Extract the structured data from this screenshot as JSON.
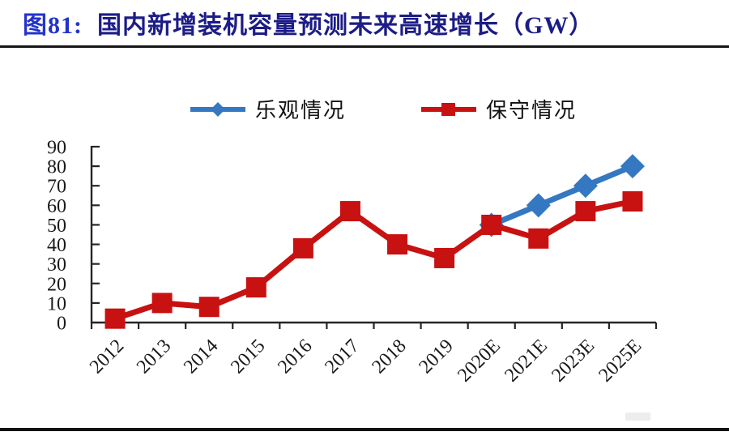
{
  "header": {
    "figure_label": "图81:",
    "title": "国内新增装机容量预测未来高速增长（GW）",
    "figure_label_color": "#2233cc",
    "title_color": "#1c1c88"
  },
  "chart_data": {
    "type": "line",
    "title": "国内新增装机容量预测未来高速增长（GW）",
    "unit": "GW",
    "categories": [
      "2012",
      "2013",
      "2014",
      "2015",
      "2016",
      "2017",
      "2018",
      "2019",
      "2020E",
      "2021E",
      "2023E",
      "2025E"
    ],
    "series": [
      {
        "name": "乐观情况",
        "color": "#3578c2",
        "marker": "diamond",
        "values": [
          null,
          null,
          null,
          null,
          null,
          null,
          null,
          null,
          50,
          60,
          70,
          80
        ]
      },
      {
        "name": "保守情况",
        "color": "#c81111",
        "marker": "square",
        "values": [
          2,
          10,
          8,
          18,
          38,
          57,
          40,
          33,
          50,
          43,
          57,
          62
        ]
      }
    ],
    "ylim": [
      0,
      90
    ],
    "y_ticks": [
      0,
      10,
      20,
      30,
      40,
      50,
      60,
      70,
      80,
      90
    ],
    "xlabel": "",
    "ylabel": "",
    "grid": false,
    "legend_position": "top",
    "axis_color": "#262626",
    "tick_label_color": "#1a1a1a"
  }
}
